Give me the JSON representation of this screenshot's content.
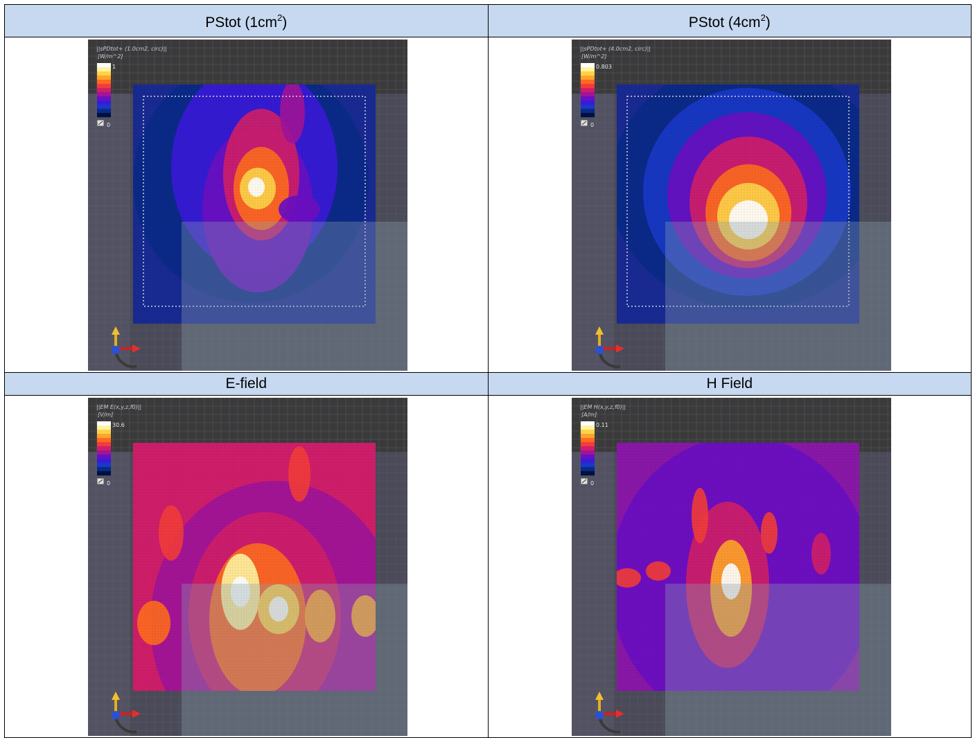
{
  "panels": [
    {
      "header_text": "PStot (1cm",
      "header_sup": "2",
      "header_close": ")",
      "quantity_label": "||sPDtot+ (1.0cm2, circ)||",
      "unit_label": "[W/m^2]",
      "scale_max": "1",
      "scale_min": "0"
    },
    {
      "header_text": "PStot (4cm",
      "header_sup": "2",
      "header_close": ")",
      "quantity_label": "||sPDtot+ (4.0cm2, circ)||",
      "unit_label": "[W/m^2]",
      "scale_max": "0.803",
      "scale_min": "0"
    },
    {
      "header_text": "E-field",
      "quantity_label": "||EM E(x,y,z,f0)||",
      "unit_label": "[V/m]",
      "scale_max": "30.6",
      "scale_min": "0"
    },
    {
      "header_text": "H Field",
      "quantity_label": "||EM H(x,y,z,f0)||",
      "unit_label": "[A/m]",
      "scale_max": "0.11",
      "scale_min": "0"
    }
  ],
  "colors": {
    "header_bg": "#c6d9f0",
    "viewport_bg": "#4a4a58",
    "colormap": [
      "#ffffff",
      "#fff3a0",
      "#ffd24a",
      "#ffa42a",
      "#ff6a20",
      "#f23c3c",
      "#d01e6a",
      "#a0149a",
      "#6a0fc2",
      "#3a1ad8",
      "#1a38c8",
      "#0a2a88",
      "#001040"
    ]
  },
  "icons": {
    "axis_triad": "xyz-axis-triad-icon",
    "colorbar_toggle": "colorbar-toggle-icon"
  }
}
